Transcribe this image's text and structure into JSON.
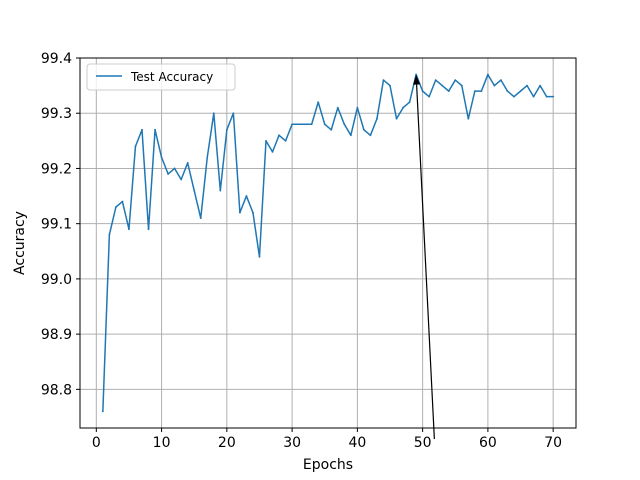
{
  "chart_data": {
    "type": "line",
    "title": "",
    "xlabel": "Epochs",
    "ylabel": "Accuracy",
    "xlim": [
      -2.5,
      73.5
    ],
    "ylim": [
      98.73,
      99.4
    ],
    "xticks": [
      0,
      10,
      20,
      30,
      40,
      50,
      60,
      70
    ],
    "yticks": [
      98.8,
      98.9,
      99.0,
      99.1,
      99.2,
      99.3,
      99.4
    ],
    "ytick_labels": [
      "98.8",
      "98.9",
      "99.0",
      "99.1",
      "99.2",
      "99.3",
      "99.4"
    ],
    "grid": true,
    "legend_position": "upper-left",
    "series": [
      {
        "name": "Test Accuracy",
        "color": "#1f77b4",
        "x": [
          1,
          2,
          3,
          4,
          5,
          6,
          7,
          8,
          9,
          10,
          11,
          12,
          13,
          14,
          15,
          16,
          17,
          18,
          19,
          20,
          21,
          22,
          23,
          24,
          25,
          26,
          27,
          28,
          29,
          30,
          31,
          32,
          33,
          34,
          35,
          36,
          37,
          38,
          39,
          40,
          41,
          42,
          43,
          44,
          45,
          46,
          47,
          48,
          49,
          50,
          51,
          52,
          53,
          54,
          55,
          56,
          57,
          58,
          59,
          60,
          61,
          62,
          63,
          64,
          65,
          66,
          67,
          68,
          69,
          70
        ],
        "values": [
          98.76,
          99.08,
          99.13,
          99.14,
          99.09,
          99.24,
          99.27,
          99.09,
          99.27,
          99.22,
          99.19,
          99.2,
          99.18,
          99.21,
          99.16,
          99.11,
          99.22,
          99.3,
          99.16,
          99.27,
          99.3,
          99.12,
          99.15,
          99.12,
          99.04,
          99.25,
          99.23,
          99.26,
          99.25,
          99.28,
          99.28,
          99.28,
          99.28,
          99.32,
          99.28,
          99.27,
          99.31,
          99.28,
          99.26,
          99.31,
          99.27,
          99.26,
          99.29,
          99.36,
          99.35,
          99.29,
          99.31,
          99.32,
          99.37,
          99.34,
          99.33,
          99.36,
          99.35,
          99.34,
          99.36,
          99.35,
          99.29,
          99.34,
          99.34,
          99.37,
          99.35,
          99.36,
          99.34,
          99.33,
          99.34,
          99.35,
          99.33,
          99.35,
          99.33,
          99.33
        ]
      }
    ],
    "annotation": {
      "type": "arrow",
      "color": "#000000",
      "from": [
        51.8,
        98.71
      ],
      "to": [
        49,
        99.37
      ]
    }
  }
}
